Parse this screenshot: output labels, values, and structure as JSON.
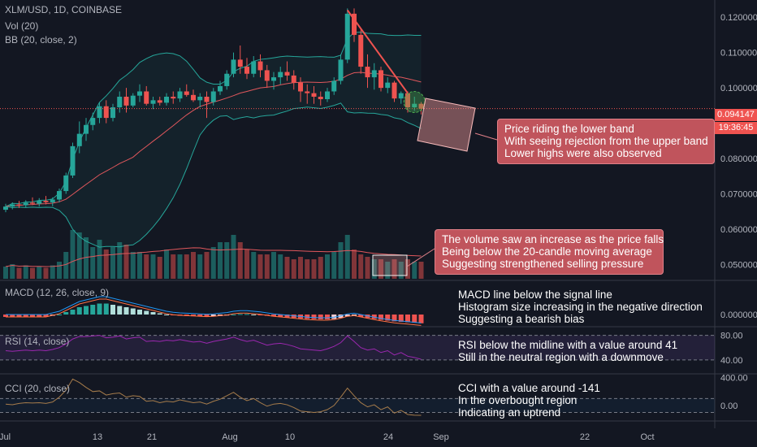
{
  "header": {
    "symbol": "XLM/USD, 1D, COINBASE",
    "vol": "Vol (20)",
    "bb": "BB (20, close, 2)"
  },
  "panes": {
    "macd": "MACD (12, 26, close, 9)",
    "rsi": "RSI (14, close)",
    "cci": "CCI (20, close)"
  },
  "price_tag": {
    "price": "0.094147",
    "countdown": "19:36:45",
    "color": "#ef5350"
  },
  "annotations": {
    "price_callout": [
      "Price riding the lower band",
      "With seeing rejection from the upper band",
      "Lower highs were also observed"
    ],
    "volume_callout": [
      "The volume saw an increase as the price falls",
      "Being below the 20-candle moving average",
      "Suggesting strengthened selling pressure"
    ],
    "macd_note": [
      "MACD line below the signal line",
      "Histogram size increasing in the negative direction",
      "Suggesting a bearish bias"
    ],
    "rsi_note": [
      "RSI below the midline with a value around 41",
      "Still in the neutral region with a downmove"
    ],
    "cci_note": [
      "CCI with a value around -141",
      "In the overbought region",
      "Indicating an uptrend"
    ]
  },
  "colors": {
    "up": "#26a69a",
    "down": "#ef5350",
    "background": "#131722",
    "bb_basis": "#e0575c",
    "bb_band": "#26a69a",
    "rsi": "#9c27b0",
    "cci": "#a67c4b",
    "macd": "#2196f3",
    "signal": "#ff7043"
  },
  "chart_data": {
    "type": "candlestick",
    "x_tick_labels": [
      "Jul",
      "13",
      "21",
      "Aug",
      "10",
      "24",
      "Sep",
      "22",
      "Oct"
    ],
    "y_tick_labels": [
      "0.120000",
      "0.110000",
      "0.100000",
      "0.080000",
      "0.070000",
      "0.060000",
      "0.050000"
    ],
    "macd_y_tick_labels": [
      "0.000000"
    ],
    "rsi_y_tick_labels": [
      "80.00",
      "40.00"
    ],
    "cci_y_tick_labels": [
      "400.00",
      "0.00"
    ],
    "ohlc": [
      [
        0.0655,
        0.0672,
        0.0648,
        0.0664
      ],
      [
        0.0664,
        0.0676,
        0.0656,
        0.067
      ],
      [
        0.067,
        0.068,
        0.066,
        0.0668
      ],
      [
        0.0668,
        0.0682,
        0.0662,
        0.0675
      ],
      [
        0.0675,
        0.069,
        0.0668,
        0.0672
      ],
      [
        0.0672,
        0.0688,
        0.0664,
        0.068
      ],
      [
        0.068,
        0.0694,
        0.067,
        0.0676
      ],
      [
        0.0676,
        0.069,
        0.0665,
        0.0684
      ],
      [
        0.0684,
        0.0715,
        0.0676,
        0.0708
      ],
      [
        0.0708,
        0.076,
        0.07,
        0.0752
      ],
      [
        0.0752,
        0.0845,
        0.0745,
        0.0835
      ],
      [
        0.0835,
        0.0905,
        0.0815,
        0.087
      ],
      [
        0.087,
        0.0915,
        0.085,
        0.0895
      ],
      [
        0.0895,
        0.093,
        0.088,
        0.0915
      ],
      [
        0.0915,
        0.096,
        0.09,
        0.0948
      ],
      [
        0.0948,
        0.0965,
        0.09,
        0.0915
      ],
      [
        0.0915,
        0.0955,
        0.0905,
        0.0945
      ],
      [
        0.0945,
        0.099,
        0.093,
        0.0975
      ],
      [
        0.0975,
        0.1,
        0.093,
        0.095
      ],
      [
        0.095,
        0.0985,
        0.0945,
        0.0978
      ],
      [
        0.0978,
        0.101,
        0.096,
        0.099
      ],
      [
        0.099,
        0.1005,
        0.095,
        0.0955
      ],
      [
        0.0955,
        0.0975,
        0.094,
        0.0965
      ],
      [
        0.0965,
        0.0975,
        0.095,
        0.0958
      ],
      [
        0.0958,
        0.0985,
        0.095,
        0.0975
      ],
      [
        0.0975,
        0.099,
        0.0955,
        0.097
      ],
      [
        0.097,
        0.1,
        0.096,
        0.099
      ],
      [
        0.099,
        0.101,
        0.0975,
        0.098
      ],
      [
        0.098,
        0.0995,
        0.096,
        0.0965
      ],
      [
        0.0965,
        0.0985,
        0.0945,
        0.0975
      ],
      [
        0.0975,
        0.099,
        0.0915,
        0.096
      ],
      [
        0.096,
        0.1,
        0.095,
        0.099
      ],
      [
        0.099,
        0.102,
        0.098,
        0.1005
      ],
      [
        0.1005,
        0.105,
        0.0995,
        0.104
      ],
      [
        0.104,
        0.11,
        0.103,
        0.108
      ],
      [
        0.108,
        0.112,
        0.104,
        0.106
      ],
      [
        0.106,
        0.1085,
        0.1025,
        0.104
      ],
      [
        0.104,
        0.109,
        0.103,
        0.1075
      ],
      [
        0.1075,
        0.1095,
        0.103,
        0.105
      ],
      [
        0.105,
        0.1065,
        0.1,
        0.102
      ],
      [
        0.102,
        0.1045,
        0.0995,
        0.103
      ],
      [
        0.103,
        0.106,
        0.101,
        0.1045
      ],
      [
        0.1045,
        0.1075,
        0.102,
        0.1035
      ],
      [
        0.1035,
        0.105,
        0.0995,
        0.1015
      ],
      [
        0.1015,
        0.103,
        0.096,
        0.099
      ],
      [
        0.099,
        0.101,
        0.0955,
        0.0985
      ],
      [
        0.0985,
        0.1005,
        0.0955,
        0.0975
      ],
      [
        0.0975,
        0.099,
        0.095,
        0.0968
      ],
      [
        0.0968,
        0.1,
        0.096,
        0.099
      ],
      [
        0.099,
        0.103,
        0.098,
        0.102
      ],
      [
        0.102,
        0.1095,
        0.101,
        0.108
      ],
      [
        0.108,
        0.1225,
        0.107,
        0.121
      ],
      [
        0.121,
        0.1225,
        0.113,
        0.115
      ],
      [
        0.115,
        0.1165,
        0.104,
        0.106
      ],
      [
        0.106,
        0.1095,
        0.1,
        0.103
      ],
      [
        0.103,
        0.107,
        0.0995,
        0.105
      ],
      [
        0.105,
        0.106,
        0.099,
        0.1
      ],
      [
        0.1,
        0.103,
        0.0985,
        0.1015
      ],
      [
        0.1015,
        0.102,
        0.096,
        0.097
      ],
      [
        0.097,
        0.099,
        0.0955,
        0.0985
      ],
      [
        0.0985,
        0.099,
        0.093,
        0.0945
      ],
      [
        0.0945,
        0.0975,
        0.0935,
        0.0955
      ],
      [
        0.0955,
        0.096,
        0.0925,
        0.0941
      ]
    ],
    "volume": [
      10,
      12,
      9,
      11,
      9,
      10,
      9,
      11,
      14,
      22,
      40,
      38,
      34,
      26,
      32,
      24,
      26,
      30,
      28,
      22,
      22,
      20,
      20,
      18,
      24,
      20,
      20,
      20,
      22,
      20,
      22,
      26,
      30,
      30,
      36,
      30,
      24,
      22,
      20,
      20,
      22,
      20,
      18,
      16,
      18,
      16,
      16,
      18,
      20,
      22,
      30,
      36,
      24,
      20,
      18,
      16,
      16,
      14,
      16,
      14,
      16,
      14,
      14
    ],
    "bb_basis_last": 0.1015,
    "bb_upper_last": 0.113,
    "bb_lower_last": 0.093,
    "macd_hist": [
      -1,
      -1,
      -1,
      -1,
      -1,
      -1,
      -1,
      -0.5,
      0,
      1,
      2,
      3,
      3.5,
      4,
      4.5,
      4.5,
      4,
      3.5,
      3,
      2.5,
      2,
      1.5,
      1,
      0.5,
      0,
      -0.3,
      -0.5,
      -0.6,
      -0.7,
      -0.8,
      -0.9,
      -0.8,
      -0.6,
      -0.4,
      0,
      0.2,
      0.2,
      0,
      -0.2,
      -0.5,
      -0.8,
      -1,
      -1.2,
      -1.4,
      -1.6,
      -1.8,
      -1.9,
      -2,
      -2,
      -1.8,
      -1.4,
      -0.8,
      -0.6,
      -1,
      -1.4,
      -1.8,
      -2.2,
      -2.5,
      -2.8,
      -3,
      -3.2,
      -3.4,
      -3.6
    ],
    "rsi": [
      55,
      54,
      55,
      56,
      55,
      56,
      55,
      57,
      60,
      66,
      74,
      78,
      78,
      79,
      80,
      76,
      77,
      79,
      74,
      76,
      77,
      70,
      71,
      70,
      72,
      71,
      73,
      71,
      69,
      70,
      67,
      70,
      72,
      74,
      77,
      73,
      70,
      72,
      68,
      64,
      66,
      67,
      65,
      62,
      58,
      57,
      56,
      55,
      58,
      62,
      68,
      79,
      70,
      60,
      56,
      58,
      52,
      55,
      48,
      52,
      46,
      44,
      41
    ],
    "cci": [
      20,
      10,
      30,
      40,
      35,
      40,
      30,
      50,
      120,
      220,
      380,
      330,
      260,
      200,
      210,
      150,
      170,
      180,
      120,
      140,
      130,
      60,
      70,
      40,
      60,
      50,
      80,
      60,
      40,
      50,
      20,
      60,
      90,
      140,
      190,
      120,
      70,
      100,
      40,
      -10,
      20,
      30,
      10,
      -30,
      -80,
      -90,
      -100,
      -90,
      -60,
      0,
      120,
      250,
      140,
      40,
      -20,
      10,
      -60,
      -20,
      -110,
      -70,
      -130,
      -140,
      -141
    ]
  }
}
